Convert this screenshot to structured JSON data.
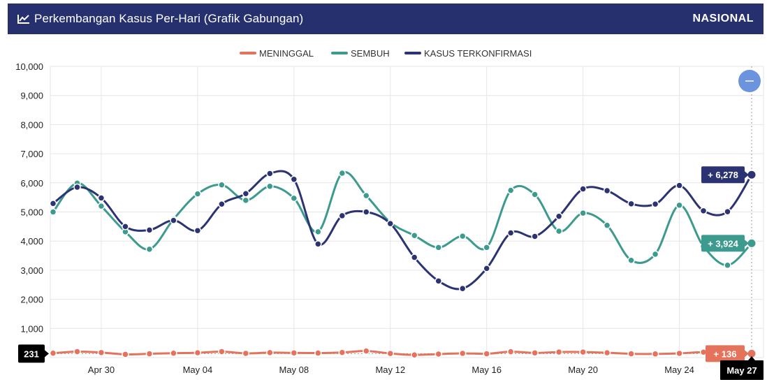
{
  "header": {
    "title": "Perkembangan Kasus Per-Hari (Grafik Gabungan)",
    "badge": "NASIONAL",
    "icon": "line-chart-icon",
    "bg_color": "#26306f"
  },
  "controls": {
    "collapse_icon": "minus-icon",
    "collapse_color": "#6b93de"
  },
  "chart_data": {
    "type": "line",
    "x": [
      "2021-04-28",
      "2021-04-29",
      "2021-04-30",
      "2021-05-01",
      "2021-05-02",
      "2021-05-03",
      "2021-05-04",
      "2021-05-05",
      "2021-05-06",
      "2021-05-07",
      "2021-05-08",
      "2021-05-09",
      "2021-05-10",
      "2021-05-11",
      "2021-05-12",
      "2021-05-13",
      "2021-05-14",
      "2021-05-15",
      "2021-05-16",
      "2021-05-17",
      "2021-05-18",
      "2021-05-19",
      "2021-05-20",
      "2021-05-21",
      "2021-05-22",
      "2021-05-23",
      "2021-05-24",
      "2021-05-25",
      "2021-05-26",
      "2021-05-27"
    ],
    "x_tick_labels": [
      {
        "index": 2,
        "label": "Apr 30"
      },
      {
        "index": 6,
        "label": "May 04"
      },
      {
        "index": 10,
        "label": "May 08"
      },
      {
        "index": 14,
        "label": "May 12"
      },
      {
        "index": 18,
        "label": "May 16"
      },
      {
        "index": 22,
        "label": "May 20"
      },
      {
        "index": 26,
        "label": "May 24"
      }
    ],
    "ylim": [
      0,
      10000
    ],
    "yticks": [
      "0",
      "1,000",
      "2,000",
      "3,000",
      "4,000",
      "5,000",
      "6,000",
      "7,000",
      "8,000",
      "9,000",
      "10,000"
    ],
    "grid": true,
    "legend_position": "top-center",
    "series": [
      {
        "name": "MENINGGAL",
        "color": "#e5735c",
        "values": [
          150,
          205,
          172,
          110,
          130,
          150,
          165,
          205,
          145,
          170,
          160,
          155,
          175,
          225,
          140,
          90,
          120,
          145,
          130,
          200,
          160,
          190,
          190,
          165,
          130,
          125,
          145,
          185,
          170,
          136
        ]
      },
      {
        "name": "SEMBUH",
        "color": "#3c9a8e",
        "values": [
          5000,
          5990,
          5200,
          4320,
          3720,
          4750,
          5620,
          5930,
          5400,
          5880,
          5470,
          4320,
          6330,
          5560,
          4640,
          4190,
          3780,
          4170,
          3780,
          5740,
          5600,
          4340,
          4960,
          4540,
          3340,
          3550,
          5230,
          3820,
          3170,
          3924
        ]
      },
      {
        "name": "KASUS TERKONFIRMASI",
        "color": "#2c3373",
        "values": [
          5290,
          5850,
          5480,
          4500,
          4380,
          4710,
          4360,
          5270,
          5630,
          6320,
          6120,
          3900,
          4870,
          5000,
          4600,
          3440,
          2630,
          2370,
          3060,
          4280,
          4160,
          4850,
          5790,
          5730,
          5280,
          5270,
          5910,
          5040,
          5010,
          6278
        ]
      }
    ],
    "end_labels": {
      "KASUS TERKONFIRMASI": "+ 6,278",
      "SEMBUH": "+ 3,924",
      "MENINGGAL": "+ 136"
    },
    "crosshair_y_label": "231",
    "crosshair_x_label": "May 27"
  }
}
